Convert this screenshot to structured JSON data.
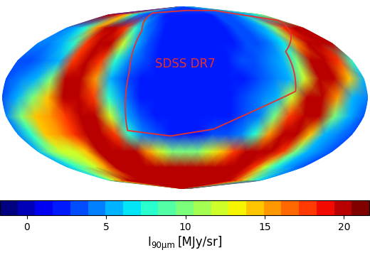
{
  "chart_data": {
    "type": "heatmap",
    "annotation": "SDSS DR7",
    "tick_labels": false,
    "lon": [
      -180,
      -165,
      -150,
      -135,
      -120,
      -105,
      -90,
      -75,
      -60,
      -45,
      -30,
      -15,
      0,
      15,
      30,
      45,
      60,
      75,
      90,
      105,
      120,
      135,
      150,
      165,
      180
    ],
    "lat": [
      90,
      75,
      60,
      45,
      30,
      15,
      0,
      -15,
      -30,
      -45,
      -60,
      -75,
      -90
    ],
    "values": [
      [
        3,
        3,
        3,
        3,
        3,
        3,
        3,
        3,
        3,
        3,
        3,
        3,
        3,
        3,
        3,
        3,
        3,
        3,
        3,
        3,
        3,
        3,
        3,
        3,
        3
      ],
      [
        20,
        20,
        18,
        14,
        8,
        4,
        3,
        3,
        3,
        2,
        2,
        2,
        2,
        2,
        2,
        2,
        2,
        3,
        3,
        3,
        4,
        5,
        6,
        8,
        10
      ],
      [
        4,
        5,
        8,
        16,
        20,
        20,
        18,
        8,
        4,
        3,
        2,
        2,
        2,
        2,
        2,
        2,
        2,
        3,
        3,
        4,
        6,
        10,
        18,
        20,
        20
      ],
      [
        4,
        4,
        5,
        8,
        18,
        20,
        20,
        12,
        5,
        3,
        2,
        2,
        2,
        2,
        2,
        2,
        2,
        3,
        3,
        4,
        7,
        16,
        20,
        20,
        20
      ],
      [
        3,
        3,
        4,
        6,
        18,
        20,
        18,
        8,
        4,
        3,
        2,
        2,
        2,
        2,
        2,
        2,
        3,
        3,
        4,
        6,
        10,
        20,
        20,
        18,
        8
      ],
      [
        3,
        4,
        6,
        10,
        20,
        20,
        16,
        6,
        3,
        2,
        2,
        2,
        2,
        2,
        2,
        2,
        2,
        3,
        4,
        6,
        12,
        20,
        20,
        14,
        5
      ],
      [
        3,
        6,
        10,
        14,
        20,
        20,
        18,
        8,
        4,
        2,
        2,
        2,
        2,
        2,
        2,
        2,
        3,
        4,
        6,
        12,
        20,
        20,
        16,
        6,
        4
      ],
      [
        4,
        10,
        14,
        16,
        18,
        20,
        20,
        12,
        5,
        3,
        2,
        2,
        2,
        2,
        2,
        2,
        3,
        4,
        10,
        18,
        20,
        20,
        10,
        5,
        3
      ],
      [
        4,
        8,
        14,
        16,
        18,
        20,
        20,
        18,
        8,
        4,
        3,
        2,
        2,
        2,
        3,
        3,
        4,
        8,
        16,
        20,
        20,
        14,
        6,
        4,
        3
      ],
      [
        6,
        10,
        12,
        12,
        14,
        20,
        20,
        20,
        20,
        16,
        12,
        10,
        10,
        10,
        12,
        14,
        18,
        20,
        20,
        20,
        18,
        10,
        5,
        4,
        3
      ],
      [
        6,
        8,
        10,
        12,
        16,
        20,
        20,
        20,
        20,
        20,
        20,
        20,
        20,
        20,
        20,
        20,
        20,
        20,
        20,
        18,
        12,
        8,
        5,
        4,
        3
      ],
      [
        8,
        12,
        16,
        20,
        20,
        20,
        20,
        20,
        20,
        20,
        20,
        20,
        20,
        20,
        20,
        20,
        20,
        20,
        20,
        20,
        18,
        14,
        10,
        8,
        6
      ],
      [
        20,
        20,
        20,
        20,
        20,
        20,
        20,
        20,
        20,
        20,
        20,
        20,
        20,
        20,
        20,
        20,
        20,
        20,
        20,
        20,
        20,
        20,
        20,
        20,
        20
      ]
    ],
    "outline": {
      "color": "#e8312d",
      "lon": [
        -83.5,
        0,
        95,
        171,
        114.5,
        109,
        30,
        -15.6,
        -60.5,
        -57,
        -62
      ],
      "lat": [
        77.4,
        81,
        81,
        68,
        37.8,
        5,
        -25.5,
        -31.3,
        -26.7,
        20.4,
        57
      ]
    },
    "colorbar": {
      "label": {
        "symbol": "I",
        "subscript": "90μm",
        "unit": "[MJy/sr]"
      },
      "range": [
        -1.7,
        21.6
      ],
      "ticks": [
        0,
        5,
        10,
        15,
        20
      ]
    }
  }
}
